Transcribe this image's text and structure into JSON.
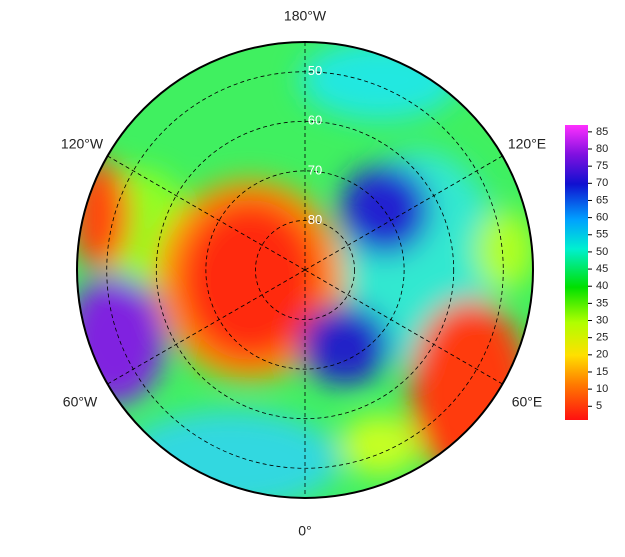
{
  "map": {
    "longitude_labels": {
      "top": "180°W",
      "bottom": "0°",
      "upper_left": "120°W",
      "upper_right": "120°E",
      "lower_left": "60°W",
      "lower_right": "60°E"
    },
    "latlim": [
      44,
      90
    ],
    "latitude_circles": [
      50,
      60,
      70,
      80
    ]
  },
  "colorbar": {
    "range": [
      1,
      87
    ],
    "ticks": [
      5,
      10,
      15,
      20,
      25,
      30,
      35,
      40,
      45,
      50,
      55,
      60,
      65,
      70,
      75,
      80,
      85
    ]
  }
}
